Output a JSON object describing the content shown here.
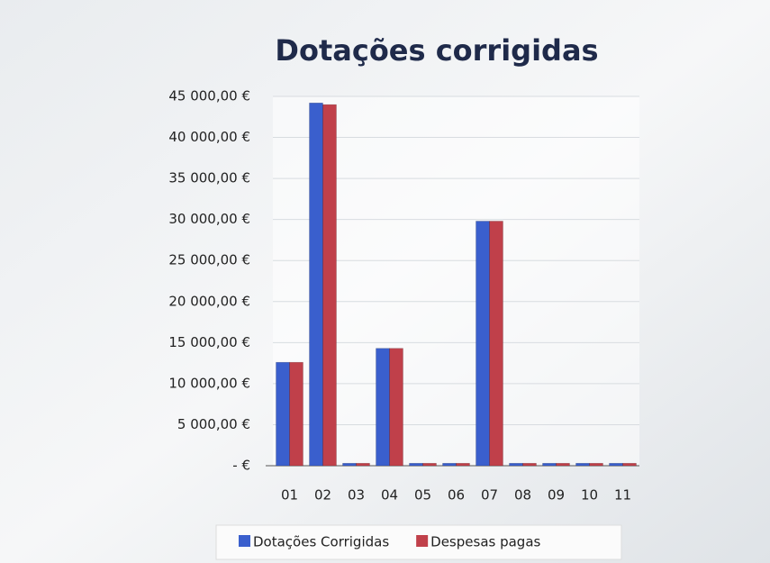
{
  "chart_data": {
    "type": "bar",
    "title": "Dotações corrigidas",
    "categories": [
      "01",
      "02",
      "03",
      "04",
      "05",
      "06",
      "07",
      "08",
      "09",
      "10",
      "11"
    ],
    "series": [
      {
        "name": "Dotações Corrigidas",
        "color": "#3a5fcd",
        "values": [
          12600,
          44200,
          300,
          14300,
          300,
          300,
          29800,
          300,
          300,
          300,
          300
        ]
      },
      {
        "name": "Despesas pagas",
        "color": "#c0404a",
        "values": [
          12600,
          44000,
          300,
          14300,
          300,
          300,
          29800,
          300,
          300,
          300,
          300
        ]
      }
    ],
    "ylim": [
      0,
      45000
    ],
    "yticks": [
      {
        "value": 0,
        "label": "- €"
      },
      {
        "value": 5000,
        "label": "5 000,00 €"
      },
      {
        "value": 10000,
        "label": "10 000,00 €"
      },
      {
        "value": 15000,
        "label": "15 000,00 €"
      },
      {
        "value": 20000,
        "label": "20 000,00 €"
      },
      {
        "value": 25000,
        "label": "25 000,00 €"
      },
      {
        "value": 30000,
        "label": "30 000,00 €"
      },
      {
        "value": 35000,
        "label": "35 000,00 €"
      },
      {
        "value": 40000,
        "label": "40 000,00 €"
      },
      {
        "value": 45000,
        "label": "45 000,00 €"
      }
    ],
    "grid": true,
    "legend": "bottom"
  }
}
